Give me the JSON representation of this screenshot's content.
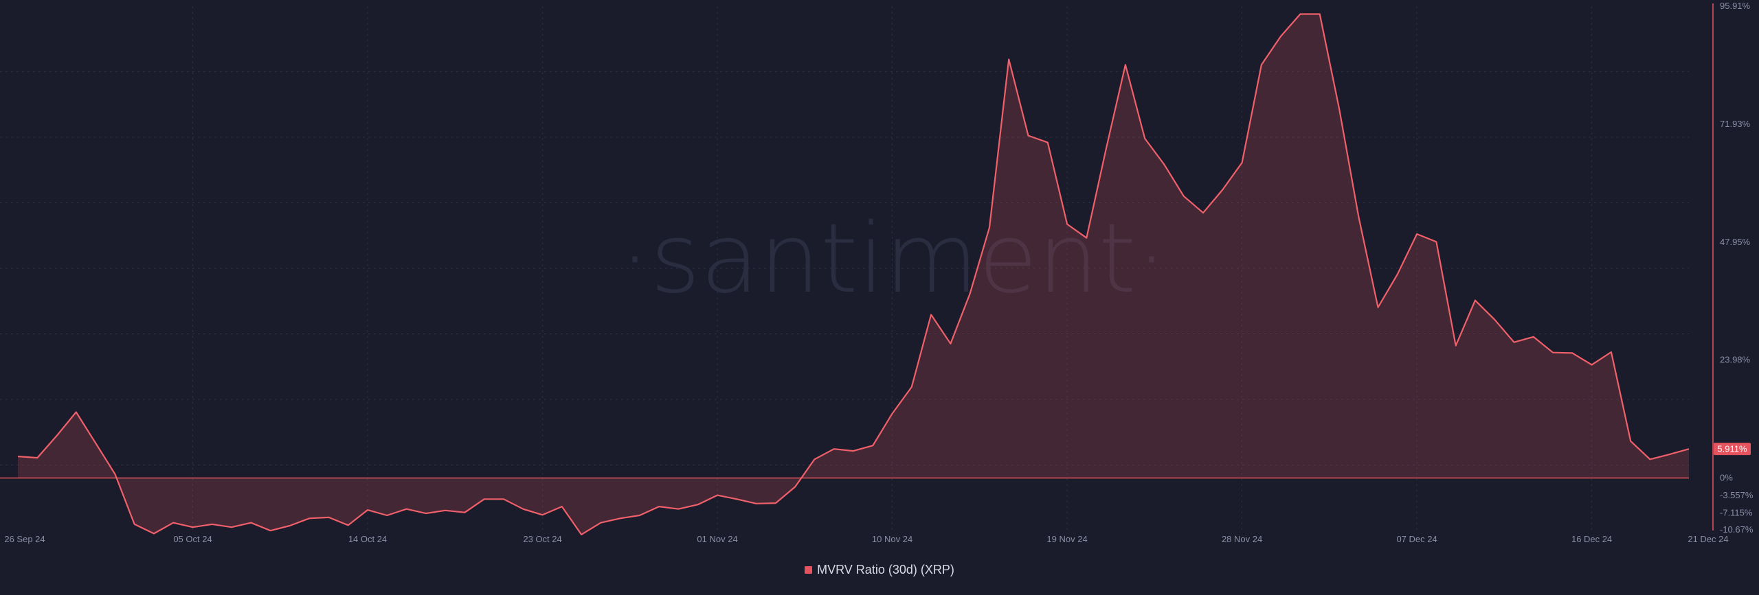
{
  "watermark": "·santiment·",
  "colors": {
    "background": "#1b1c2b",
    "line": "#f0606a",
    "fill": "#e5535f",
    "grid": "#2c2e42",
    "zero_line": "#e5535f",
    "label_badge": "#e5535f",
    "axis_text": "#8a8ea6"
  },
  "chart_data": {
    "type": "area",
    "title": "",
    "xlabel": "",
    "ylabel": "",
    "x_ticks": [
      "26 Sep 24",
      "05 Oct 24",
      "14 Oct 24",
      "23 Oct 24",
      "01 Nov 24",
      "10 Nov 24",
      "19 Nov 24",
      "28 Nov 24",
      "07 Dec 24",
      "16 Dec 24",
      "21 Dec 24"
    ],
    "y_ticks": [
      "95.91%",
      "71.93%",
      "47.95%",
      "23.98%",
      "0%",
      "-3.557%",
      "-7.115%",
      "-10.67%"
    ],
    "ylim": [
      -10.67,
      95.91
    ],
    "grid": true,
    "legend_position": "bottom-center",
    "last_value_label": "5.911%",
    "series": [
      {
        "name": "MVRV Ratio (30d) (XRP)",
        "x": [
          "2024-09-26",
          "2024-09-27",
          "2024-09-28",
          "2024-09-29",
          "2024-09-30",
          "2024-10-01",
          "2024-10-02",
          "2024-10-03",
          "2024-10-04",
          "2024-10-05",
          "2024-10-06",
          "2024-10-07",
          "2024-10-08",
          "2024-10-09",
          "2024-10-10",
          "2024-10-11",
          "2024-10-12",
          "2024-10-13",
          "2024-10-14",
          "2024-10-15",
          "2024-10-16",
          "2024-10-17",
          "2024-10-18",
          "2024-10-19",
          "2024-10-20",
          "2024-10-21",
          "2024-10-22",
          "2024-10-23",
          "2024-10-24",
          "2024-10-25",
          "2024-10-26",
          "2024-10-27",
          "2024-10-28",
          "2024-10-29",
          "2024-10-30",
          "2024-10-31",
          "2024-11-01",
          "2024-11-02",
          "2024-11-03",
          "2024-11-04",
          "2024-11-05",
          "2024-11-06",
          "2024-11-07",
          "2024-11-08",
          "2024-11-09",
          "2024-11-10",
          "2024-11-11",
          "2024-11-12",
          "2024-11-13",
          "2024-11-14",
          "2024-11-15",
          "2024-11-16",
          "2024-11-17",
          "2024-11-18",
          "2024-11-19",
          "2024-11-20",
          "2024-11-21",
          "2024-11-22",
          "2024-11-23",
          "2024-11-24",
          "2024-11-25",
          "2024-11-26",
          "2024-11-27",
          "2024-11-28",
          "2024-11-29",
          "2024-11-30",
          "2024-12-01",
          "2024-12-02",
          "2024-12-03",
          "2024-12-04",
          "2024-12-05",
          "2024-12-06",
          "2024-12-07",
          "2024-12-08",
          "2024-12-09",
          "2024-12-10",
          "2024-12-11",
          "2024-12-12",
          "2024-12-13",
          "2024-12-14",
          "2024-12-15",
          "2024-12-16",
          "2024-12-17",
          "2024-12-18",
          "2024-12-19",
          "2024-12-20",
          "2024-12-21"
        ],
        "y": [
          4.4,
          4.1,
          8.6,
          13.4,
          7.1,
          0.8,
          -9.4,
          -11.3,
          -9.1,
          -10.0,
          -9.4,
          -10.0,
          -9.1,
          -10.7,
          -9.7,
          -8.2,
          -8.0,
          -9.6,
          -6.5,
          -7.6,
          -6.3,
          -7.2,
          -6.6,
          -7.0,
          -4.3,
          -4.3,
          -6.3,
          -7.5,
          -5.8,
          -11.5,
          -9.1,
          -8.2,
          -7.6,
          -5.8,
          -6.3,
          -5.4,
          -3.5,
          -4.3,
          -5.2,
          -5.1,
          -1.8,
          3.8,
          5.9,
          5.5,
          6.6,
          13.1,
          18.5,
          33.2,
          27.3,
          37.5,
          50.9,
          85.1,
          69.6,
          68.2,
          51.6,
          48.8,
          66.8,
          84.0,
          69.0,
          63.7,
          57.3,
          53.9,
          58.6,
          64.1,
          84.0,
          89.8,
          94.3,
          94.3,
          75.1,
          53.1,
          34.7,
          41.4,
          49.6,
          48.0,
          26.9,
          36.1,
          32.2,
          27.6,
          28.7,
          25.5,
          25.4,
          23.0,
          25.6,
          7.5,
          3.8,
          4.8,
          5.9
        ]
      }
    ]
  }
}
